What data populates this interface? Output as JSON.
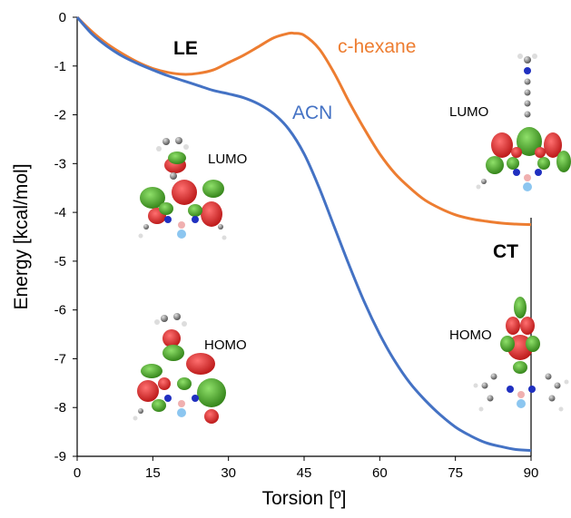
{
  "chart_data": {
    "type": "line",
    "title": "",
    "xlabel": "Torsion [º]",
    "ylabel": "Energy [kcal/mol]",
    "xlim": [
      0,
      90
    ],
    "ylim": [
      -9,
      0
    ],
    "x_ticks": [
      "0",
      "15",
      "30",
      "45",
      "60",
      "75",
      "90"
    ],
    "y_ticks": [
      "0",
      "-1",
      "-2",
      "-3",
      "-4",
      "-5",
      "-6",
      "-7",
      "-8",
      "-9"
    ],
    "grid": false,
    "series": [
      {
        "name": "c-hexane",
        "color": "#ED7D31",
        "x": [
          0,
          3,
          6,
          9,
          12,
          15,
          18,
          21,
          24,
          27,
          30,
          33,
          36,
          39,
          42,
          43,
          45,
          48,
          51,
          54,
          57,
          60,
          63,
          66,
          69,
          72,
          75,
          78,
          81,
          84,
          87,
          90
        ],
        "y": [
          0,
          -0.3,
          -0.55,
          -0.75,
          -0.92,
          -1.05,
          -1.13,
          -1.17,
          -1.15,
          -1.08,
          -0.93,
          -0.78,
          -0.6,
          -0.42,
          -0.33,
          -0.33,
          -0.37,
          -0.65,
          -1.15,
          -1.75,
          -2.3,
          -2.8,
          -3.2,
          -3.5,
          -3.75,
          -3.92,
          -4.05,
          -4.13,
          -4.18,
          -4.22,
          -4.24,
          -4.25
        ]
      },
      {
        "name": "ACN",
        "color": "#4472C4",
        "x": [
          0,
          3,
          6,
          9,
          12,
          15,
          18,
          21,
          24,
          27,
          30,
          33,
          36,
          39,
          42,
          45,
          48,
          51,
          54,
          57,
          60,
          63,
          66,
          69,
          72,
          75,
          78,
          81,
          84,
          87,
          90
        ],
        "y": [
          0,
          -0.35,
          -0.6,
          -0.8,
          -0.95,
          -1.08,
          -1.2,
          -1.3,
          -1.4,
          -1.5,
          -1.57,
          -1.65,
          -1.78,
          -1.98,
          -2.3,
          -2.8,
          -3.5,
          -4.3,
          -5.1,
          -5.85,
          -6.5,
          -7.05,
          -7.5,
          -7.85,
          -8.15,
          -8.4,
          -8.58,
          -8.72,
          -8.8,
          -8.86,
          -8.88
        ]
      }
    ],
    "annotations": {
      "le": "LE",
      "ct": "CT",
      "lumo_left": "LUMO",
      "homo_left": "HOMO",
      "lumo_right": "LUMO",
      "homo_right": "HOMO"
    }
  },
  "colors": {
    "orbital_red": "#D42020",
    "orbital_green": "#3E9A1E",
    "atom_carbon": "#7F7F7F",
    "atom_nitrogen": "#2030C0",
    "atom_boron": "#F0B0B0",
    "atom_fluorine": "#8CC6F0"
  }
}
